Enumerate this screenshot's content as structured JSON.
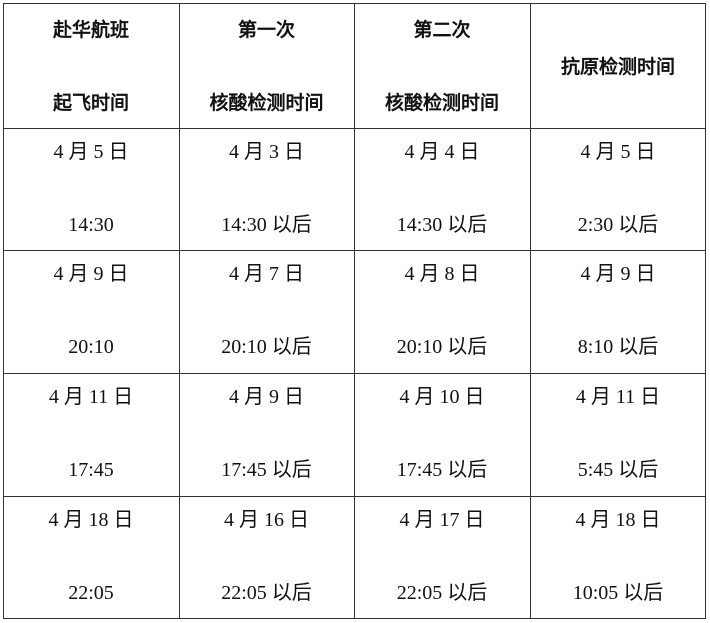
{
  "headers": [
    {
      "line1": "赴华航班",
      "line2": "起飞时间"
    },
    {
      "line1": "第一次",
      "line2": "核酸检测时间"
    },
    {
      "line1": "第二次",
      "line2": "核酸检测时间"
    },
    {
      "line1": "",
      "line2": "",
      "single": "抗原检测时间"
    }
  ],
  "rows": [
    [
      {
        "date": "4 月 5 日",
        "time": "14:30"
      },
      {
        "date": "4 月 3 日",
        "time": "14:30 以后"
      },
      {
        "date": "4 月 4 日",
        "time": "14:30 以后"
      },
      {
        "date": "4 月 5 日",
        "time": "2:30 以后"
      }
    ],
    [
      {
        "date": "4 月 9 日",
        "time": "20:10"
      },
      {
        "date": "4 月 7 日",
        "time": "20:10 以后"
      },
      {
        "date": "4 月 8 日",
        "time": "20:10 以后"
      },
      {
        "date": "4 月 9 日",
        "time": "8:10 以后"
      }
    ],
    [
      {
        "date": "4 月 11 日",
        "time": "17:45"
      },
      {
        "date": "4 月 9 日",
        "time": "17:45 以后"
      },
      {
        "date": "4 月 10 日",
        "time": "17:45 以后"
      },
      {
        "date": "4 月 11 日",
        "time": "5:45 以后"
      }
    ],
    [
      {
        "date": "4 月 18 日",
        "time": "22:05"
      },
      {
        "date": "4 月 16 日",
        "time": "22:05 以后"
      },
      {
        "date": "4 月 17 日",
        "time": "22:05 以后"
      },
      {
        "date": "4 月 18 日",
        "time": "10:05 以后"
      }
    ]
  ]
}
